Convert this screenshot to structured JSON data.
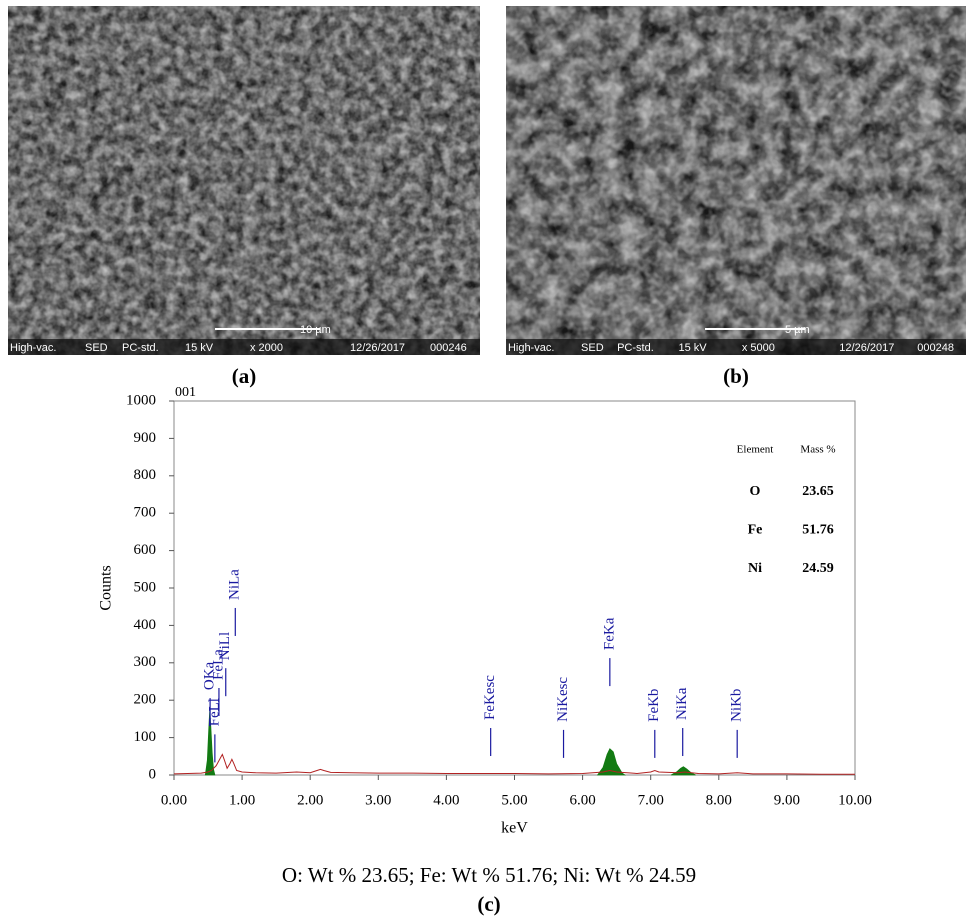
{
  "panels": [
    {
      "label": "(a)",
      "info": [
        "High-vac.",
        "SED",
        "PC-std.",
        "15 kV",
        "x 2000",
        "12/26/2017",
        "000246"
      ],
      "scale_bar": "10 µm"
    },
    {
      "label": "(b)",
      "info": [
        "High-vac.",
        "SED",
        "PC-std.",
        "15 kV",
        "x 5000",
        "12/26/2017",
        "000248"
      ],
      "scale_bar": "5 µm"
    }
  ],
  "chart_data": {
    "type": "area",
    "title": "001",
    "x_label": "keV",
    "y_label": "Counts",
    "xlim": [
      0,
      10
    ],
    "xticks": [
      {
        "value": 0,
        "label": "0.00"
      },
      {
        "value": 1,
        "label": "1.00"
      },
      {
        "value": 2,
        "label": "2.00"
      },
      {
        "value": 3,
        "label": "3.00"
      },
      {
        "value": 4,
        "label": "4.00"
      },
      {
        "value": 5,
        "label": "5.00"
      },
      {
        "value": 6,
        "label": "6.00"
      },
      {
        "value": 7,
        "label": "7.00"
      },
      {
        "value": 8,
        "label": "8.00"
      },
      {
        "value": 9,
        "label": "9.00"
      },
      {
        "value": 10,
        "label": "10.00"
      }
    ],
    "ylim": [
      0,
      1000
    ],
    "yticks": [
      0,
      100,
      200,
      300,
      400,
      500,
      600,
      700,
      800,
      900,
      1000
    ],
    "series": [
      {
        "style": "area",
        "color": "#127a12",
        "x": [
          0.46,
          0.49,
          0.51,
          0.525,
          0.54,
          0.56,
          0.58,
          0.6,
          1.0,
          6.22,
          6.3,
          6.36,
          6.4,
          6.45,
          6.5,
          6.58,
          6.62,
          7.0,
          7.3,
          7.38,
          7.44,
          7.48,
          7.53,
          7.6,
          7.66
        ],
        "values": [
          0,
          40,
          120,
          175,
          130,
          60,
          15,
          0,
          null,
          0,
          20,
          55,
          70,
          62,
          30,
          5,
          0,
          null,
          0,
          8,
          18,
          22,
          16,
          5,
          0
        ]
      },
      {
        "style": "line",
        "color": "#b22222",
        "x": [
          0,
          0.2,
          0.4,
          0.5,
          0.55,
          0.62,
          0.68,
          0.71,
          0.74,
          0.78,
          0.82,
          0.85,
          0.88,
          0.92,
          1.0,
          1.2,
          1.5,
          1.8,
          2.0,
          2.1,
          2.15,
          2.2,
          2.3,
          2.6,
          3.0,
          3.5,
          4.0,
          4.5,
          5.0,
          5.5,
          6.0,
          6.3,
          6.4,
          6.5,
          6.8,
          7.0,
          7.06,
          7.12,
          7.4,
          7.5,
          7.7,
          8.0,
          8.27,
          8.5,
          9.0,
          9.5,
          10.0
        ],
        "values": [
          3,
          4,
          5,
          8,
          12,
          25,
          45,
          55,
          40,
          18,
          30,
          42,
          30,
          12,
          8,
          6,
          5,
          8,
          6,
          12,
          15,
          12,
          7,
          6,
          5,
          5,
          4,
          4,
          4,
          3,
          4,
          8,
          12,
          8,
          4,
          8,
          12,
          8,
          6,
          8,
          4,
          3,
          6,
          3,
          3,
          2,
          2
        ]
      }
    ],
    "label_color": "#1a1aa0",
    "peak_labels": [
      {
        "text": "FeLl",
        "x": 0.6,
        "y": 130
      },
      {
        "text": "OKa",
        "x": 0.53,
        "y": 227
      },
      {
        "text": "FeLa",
        "x": 0.66,
        "y": 254
      },
      {
        "text": "NiLl",
        "x": 0.76,
        "y": 307
      },
      {
        "text": "NiLa",
        "x": 0.9,
        "y": 468
      },
      {
        "text": "FeKesc",
        "x": 4.65,
        "y": 147
      },
      {
        "text": "NiKesc",
        "x": 5.72,
        "y": 142
      },
      {
        "text": "FeKa",
        "x": 6.4,
        "y": 334
      },
      {
        "text": "FeKb",
        "x": 7.06,
        "y": 142
      },
      {
        "text": "NiKa",
        "x": 7.47,
        "y": 147
      },
      {
        "text": "NiKb",
        "x": 8.27,
        "y": 142
      }
    ],
    "table": {
      "header": [
        "Element",
        "Mass %"
      ],
      "rows": [
        [
          "O",
          23.65
        ],
        [
          "Fe",
          51.76
        ],
        [
          "Ni",
          24.59
        ]
      ]
    }
  },
  "caption": "O: Wt % 23.65; Fe: Wt % 51.76; Ni: Wt % 24.59",
  "caption_label": "(c)"
}
